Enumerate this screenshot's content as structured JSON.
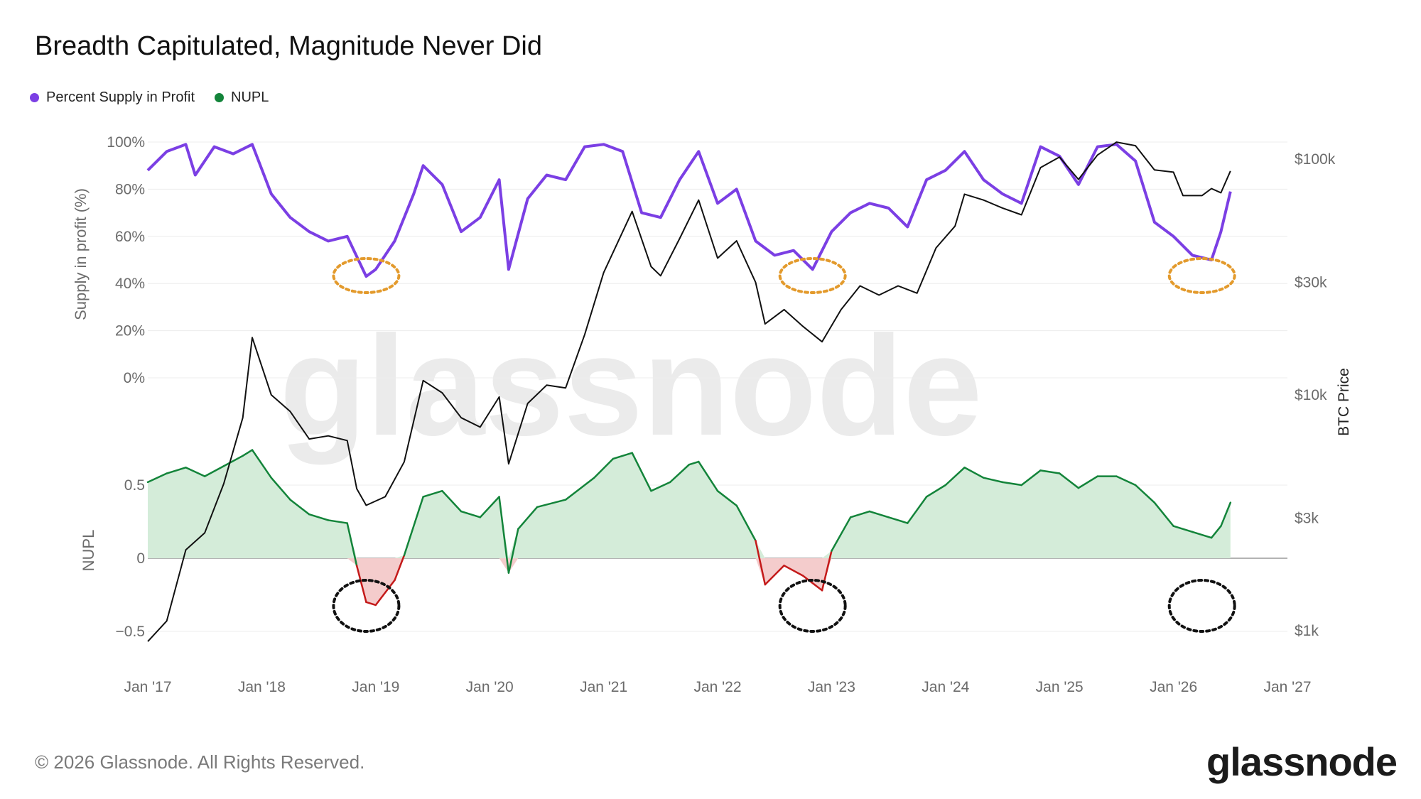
{
  "title": "Breadth Capitulated, Magnitude Never Did",
  "legend": [
    {
      "label": "Percent Supply in Profit",
      "color": "#7b3fe4"
    },
    {
      "label": "NUPL",
      "color": "#13843a"
    }
  ],
  "footer": "© 2026 Glassnode. All Rights Reserved.",
  "logo": "glassnode",
  "watermark": "glassnode",
  "colors": {
    "supply": "#7b3fe4",
    "nupl_pos": "#13843a",
    "nupl_pos_fill": "#d4ecd9",
    "nupl_neg": "#c41a1a",
    "nupl_neg_fill": "#f4cccc",
    "price": "#111111",
    "highlight_orange": "#e39a2c",
    "highlight_black": "#111111"
  },
  "chart_data": {
    "type": "line",
    "x_axis": {
      "ticks": [
        "Jan '17",
        "Jan '18",
        "Jan '19",
        "Jan '20",
        "Jan '21",
        "Jan '22",
        "Jan '23",
        "Jan '24",
        "Jan '25",
        "Jan '26",
        "Jan '27"
      ],
      "range": [
        "2017-01",
        "2027-01"
      ]
    },
    "left_axes": [
      {
        "panel": "top",
        "label": "Supply in profit (%)",
        "ticks": [
          "100%",
          "80%",
          "60%",
          "40%",
          "20%",
          "0%"
        ],
        "range": [
          0,
          100
        ]
      },
      {
        "panel": "bottom",
        "label": "NUPL",
        "ticks": [
          "0.5",
          "0",
          "−0.5"
        ],
        "range": [
          -0.65,
          0.75
        ]
      }
    ],
    "right_axis": {
      "label": "BTC Price",
      "scale": "log",
      "ticks": [
        "$100k",
        "$30k",
        "$10k",
        "$3k",
        "$1k"
      ],
      "tick_values": [
        100000,
        30000,
        10000,
        3000,
        1000
      ],
      "range": [
        700,
        160000
      ]
    },
    "series": [
      {
        "name": "Percent Supply in Profit",
        "axis": "top",
        "points": [
          [
            "2017-01",
            88
          ],
          [
            "2017-03",
            96
          ],
          [
            "2017-05",
            99
          ],
          [
            "2017-06",
            86
          ],
          [
            "2017-08",
            98
          ],
          [
            "2017-10",
            95
          ],
          [
            "2017-12",
            99
          ],
          [
            "2018-02",
            78
          ],
          [
            "2018-04",
            68
          ],
          [
            "2018-06",
            62
          ],
          [
            "2018-08",
            58
          ],
          [
            "2018-10",
            60
          ],
          [
            "2018-12",
            43
          ],
          [
            "2019-01",
            46
          ],
          [
            "2019-03",
            58
          ],
          [
            "2019-05",
            78
          ],
          [
            "2019-06",
            90
          ],
          [
            "2019-08",
            82
          ],
          [
            "2019-10",
            62
          ],
          [
            "2019-12",
            68
          ],
          [
            "2020-02",
            84
          ],
          [
            "2020-03",
            46
          ],
          [
            "2020-05",
            76
          ],
          [
            "2020-07",
            86
          ],
          [
            "2020-09",
            84
          ],
          [
            "2020-11",
            98
          ],
          [
            "2021-01",
            99
          ],
          [
            "2021-03",
            96
          ],
          [
            "2021-05",
            70
          ],
          [
            "2021-07",
            68
          ],
          [
            "2021-09",
            84
          ],
          [
            "2021-11",
            96
          ],
          [
            "2022-01",
            74
          ],
          [
            "2022-03",
            80
          ],
          [
            "2022-05",
            58
          ],
          [
            "2022-07",
            52
          ],
          [
            "2022-09",
            54
          ],
          [
            "2022-11",
            46
          ],
          [
            "2023-01",
            62
          ],
          [
            "2023-03",
            70
          ],
          [
            "2023-05",
            74
          ],
          [
            "2023-07",
            72
          ],
          [
            "2023-09",
            64
          ],
          [
            "2023-11",
            84
          ],
          [
            "2024-01",
            88
          ],
          [
            "2024-03",
            96
          ],
          [
            "2024-05",
            84
          ],
          [
            "2024-07",
            78
          ],
          [
            "2024-09",
            74
          ],
          [
            "2024-11",
            98
          ],
          [
            "2025-01",
            94
          ],
          [
            "2025-03",
            82
          ],
          [
            "2025-05",
            98
          ],
          [
            "2025-07",
            99
          ],
          [
            "2025-09",
            92
          ],
          [
            "2025-11",
            66
          ],
          [
            "2026-01",
            60
          ],
          [
            "2026-03",
            52
          ],
          [
            "2026-05",
            50
          ],
          [
            "2026-06",
            62
          ],
          [
            "2026-07",
            79
          ]
        ]
      },
      {
        "name": "NUPL",
        "axis": "bottom",
        "points": [
          [
            "2017-01",
            0.52
          ],
          [
            "2017-03",
            0.58
          ],
          [
            "2017-05",
            0.62
          ],
          [
            "2017-07",
            0.56
          ],
          [
            "2017-09",
            0.63
          ],
          [
            "2017-11",
            0.7
          ],
          [
            "2017-12",
            0.74
          ],
          [
            "2018-02",
            0.55
          ],
          [
            "2018-04",
            0.4
          ],
          [
            "2018-06",
            0.3
          ],
          [
            "2018-08",
            0.26
          ],
          [
            "2018-10",
            0.24
          ],
          [
            "2018-11",
            -0.05
          ],
          [
            "2018-12",
            -0.3
          ],
          [
            "2019-01",
            -0.32
          ],
          [
            "2019-03",
            -0.15
          ],
          [
            "2019-04",
            0.02
          ],
          [
            "2019-06",
            0.42
          ],
          [
            "2019-08",
            0.46
          ],
          [
            "2019-10",
            0.32
          ],
          [
            "2019-12",
            0.28
          ],
          [
            "2020-02",
            0.42
          ],
          [
            "2020-03",
            -0.1
          ],
          [
            "2020-04",
            0.2
          ],
          [
            "2020-06",
            0.35
          ],
          [
            "2020-09",
            0.4
          ],
          [
            "2020-12",
            0.55
          ],
          [
            "2021-02",
            0.68
          ],
          [
            "2021-04",
            0.72
          ],
          [
            "2021-06",
            0.46
          ],
          [
            "2021-08",
            0.52
          ],
          [
            "2021-10",
            0.64
          ],
          [
            "2021-11",
            0.66
          ],
          [
            "2022-01",
            0.46
          ],
          [
            "2022-03",
            0.36
          ],
          [
            "2022-05",
            0.12
          ],
          [
            "2022-06",
            -0.18
          ],
          [
            "2022-08",
            -0.05
          ],
          [
            "2022-10",
            -0.12
          ],
          [
            "2022-12",
            -0.22
          ],
          [
            "2023-01",
            0.05
          ],
          [
            "2023-03",
            0.28
          ],
          [
            "2023-05",
            0.32
          ],
          [
            "2023-07",
            0.28
          ],
          [
            "2023-09",
            0.24
          ],
          [
            "2023-11",
            0.42
          ],
          [
            "2024-01",
            0.5
          ],
          [
            "2024-03",
            0.62
          ],
          [
            "2024-05",
            0.55
          ],
          [
            "2024-07",
            0.52
          ],
          [
            "2024-09",
            0.5
          ],
          [
            "2024-11",
            0.6
          ],
          [
            "2025-01",
            0.58
          ],
          [
            "2025-03",
            0.48
          ],
          [
            "2025-05",
            0.56
          ],
          [
            "2025-07",
            0.56
          ],
          [
            "2025-09",
            0.5
          ],
          [
            "2025-11",
            0.38
          ],
          [
            "2026-01",
            0.22
          ],
          [
            "2026-03",
            0.18
          ],
          [
            "2026-05",
            0.14
          ],
          [
            "2026-06",
            0.22
          ],
          [
            "2026-07",
            0.38
          ]
        ]
      },
      {
        "name": "BTC Price",
        "axis": "right",
        "points": [
          [
            "2017-01",
            900
          ],
          [
            "2017-03",
            1100
          ],
          [
            "2017-05",
            2200
          ],
          [
            "2017-07",
            2600
          ],
          [
            "2017-09",
            4200
          ],
          [
            "2017-11",
            8000
          ],
          [
            "2017-12",
            17500
          ],
          [
            "2018-02",
            10000
          ],
          [
            "2018-04",
            8500
          ],
          [
            "2018-06",
            6500
          ],
          [
            "2018-08",
            6700
          ],
          [
            "2018-10",
            6400
          ],
          [
            "2018-11",
            4000
          ],
          [
            "2018-12",
            3400
          ],
          [
            "2019-02",
            3700
          ],
          [
            "2019-04",
            5200
          ],
          [
            "2019-06",
            11500
          ],
          [
            "2019-08",
            10200
          ],
          [
            "2019-10",
            8000
          ],
          [
            "2019-12",
            7300
          ],
          [
            "2020-02",
            9800
          ],
          [
            "2020-03",
            5100
          ],
          [
            "2020-05",
            9200
          ],
          [
            "2020-07",
            11000
          ],
          [
            "2020-09",
            10700
          ],
          [
            "2020-11",
            18000
          ],
          [
            "2021-01",
            33000
          ],
          [
            "2021-04",
            60000
          ],
          [
            "2021-06",
            35000
          ],
          [
            "2021-07",
            32000
          ],
          [
            "2021-09",
            46000
          ],
          [
            "2021-11",
            67000
          ],
          [
            "2022-01",
            38000
          ],
          [
            "2022-03",
            45000
          ],
          [
            "2022-05",
            30000
          ],
          [
            "2022-06",
            20000
          ],
          [
            "2022-08",
            23000
          ],
          [
            "2022-10",
            19500
          ],
          [
            "2022-12",
            16800
          ],
          [
            "2023-02",
            23000
          ],
          [
            "2023-04",
            29000
          ],
          [
            "2023-06",
            26500
          ],
          [
            "2023-08",
            29000
          ],
          [
            "2023-10",
            27000
          ],
          [
            "2023-12",
            42000
          ],
          [
            "2024-02",
            52000
          ],
          [
            "2024-03",
            71000
          ],
          [
            "2024-05",
            67000
          ],
          [
            "2024-07",
            62000
          ],
          [
            "2024-09",
            58000
          ],
          [
            "2024-11",
            92000
          ],
          [
            "2025-01",
            102000
          ],
          [
            "2025-03",
            82000
          ],
          [
            "2025-05",
            104000
          ],
          [
            "2025-07",
            118000
          ],
          [
            "2025-09",
            114000
          ],
          [
            "2025-11",
            90000
          ],
          [
            "2026-01",
            88000
          ],
          [
            "2026-02",
            70000
          ],
          [
            "2026-04",
            70000
          ],
          [
            "2026-05",
            75000
          ],
          [
            "2026-06",
            72000
          ],
          [
            "2026-07",
            89000
          ]
        ]
      }
    ],
    "annotations": [
      {
        "shape": "dashed-ellipse",
        "color": "orange",
        "panel": "top",
        "at": "2018-12"
      },
      {
        "shape": "dashed-ellipse",
        "color": "orange",
        "panel": "top",
        "at": "2022-11"
      },
      {
        "shape": "dashed-ellipse",
        "color": "orange",
        "panel": "top",
        "at": "2026-04"
      },
      {
        "shape": "dashed-ellipse",
        "color": "black",
        "panel": "bottom",
        "at": "2018-12"
      },
      {
        "shape": "dashed-ellipse",
        "color": "black",
        "panel": "bottom",
        "at": "2022-11"
      },
      {
        "shape": "dashed-ellipse",
        "color": "black",
        "panel": "bottom",
        "at": "2026-04"
      }
    ],
    "grid": true,
    "legend_position": "top-left"
  }
}
